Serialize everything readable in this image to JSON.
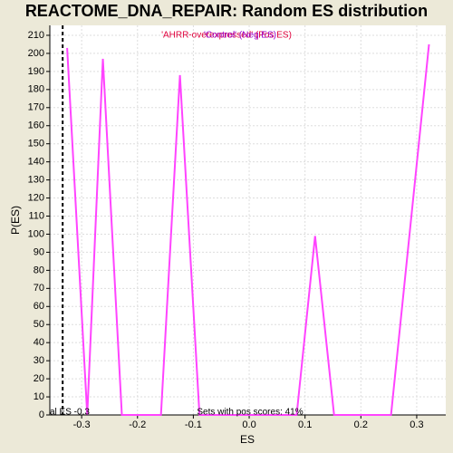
{
  "chart_data": {
    "type": "line",
    "title": "REACTOME_DNA_REPAIR: Random ES distribution",
    "x_label": "ES",
    "y_label": "P(ES)",
    "x": [
      -0.326,
      -0.29,
      -0.262,
      -0.228,
      -0.158,
      -0.124,
      -0.089,
      0.085,
      0.118,
      0.152,
      0.254,
      0.322
    ],
    "series": [
      {
        "name": "'AHRR-overexpressed' (Pos ES)",
        "color": "#ff44ff",
        "values": [
          203,
          0,
          197,
          0,
          0,
          188,
          0,
          0,
          99,
          0,
          0,
          205
        ]
      }
    ],
    "legend_pos_label": "'AHRR-overexpressed' (Pos ES)",
    "legend_pos_color": "#e0003c",
    "legend_neg_label": "'Control' (Neg ES)",
    "legend_neg_color": "#9900cc",
    "actual_es": -0.334,
    "actual_es_label": "al ES -0.3",
    "footnote": "Sets with pos scores: 41%",
    "xlim": [
      -0.357,
      0.352
    ],
    "ylim": [
      0,
      215.5
    ],
    "xticks": [
      -0.3,
      -0.2,
      -0.1,
      {
        "value": 0,
        "label": "0.0"
      },
      0.1,
      0.2,
      0.3
    ],
    "yticks": [
      0,
      10,
      20,
      30,
      40,
      50,
      60,
      70,
      80,
      90,
      100,
      110,
      120,
      130,
      140,
      150,
      160,
      170,
      180,
      190,
      200,
      210
    ],
    "grid": true
  }
}
